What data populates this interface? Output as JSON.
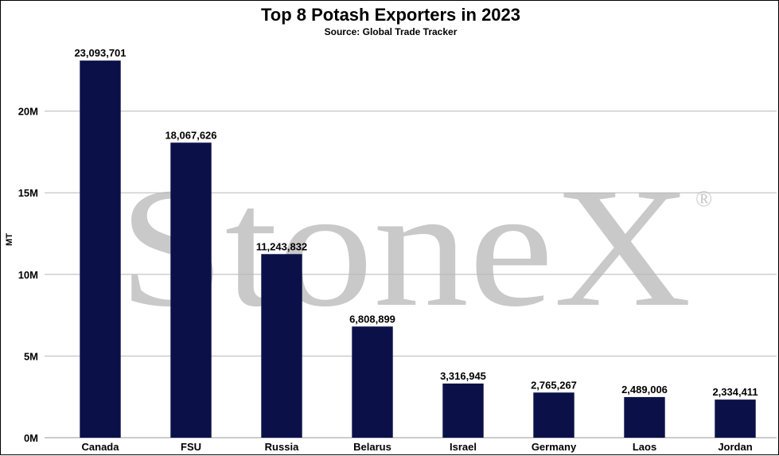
{
  "chart_data": {
    "type": "bar",
    "title": "Top 8 Potash Exporters in 2023",
    "subtitle": "Source: Global Trade Tracker",
    "ylabel": "MT",
    "xlabel": "",
    "categories": [
      "Canada",
      "FSU",
      "Russia",
      "Belarus",
      "Israel",
      "Germany",
      "Laos",
      "Jordan"
    ],
    "values": [
      23093701,
      18067626,
      11243832,
      6808899,
      3316945,
      2765267,
      2489006,
      2334411
    ],
    "data_labels": [
      "23,093,701",
      "18,067,626",
      "11,243,832",
      "6,808,899",
      "3,316,945",
      "2,765,267",
      "2,489,006",
      "2,334,411"
    ],
    "ylim": [
      0,
      25000000
    ],
    "yticks": [
      0,
      5000000,
      10000000,
      15000000,
      20000000
    ],
    "ytick_labels": [
      "0M",
      "5M",
      "10M",
      "15M",
      "20M"
    ],
    "grid": true,
    "bar_color": "#0b1148",
    "watermark": "StoneX",
    "watermark_mark": "®"
  }
}
